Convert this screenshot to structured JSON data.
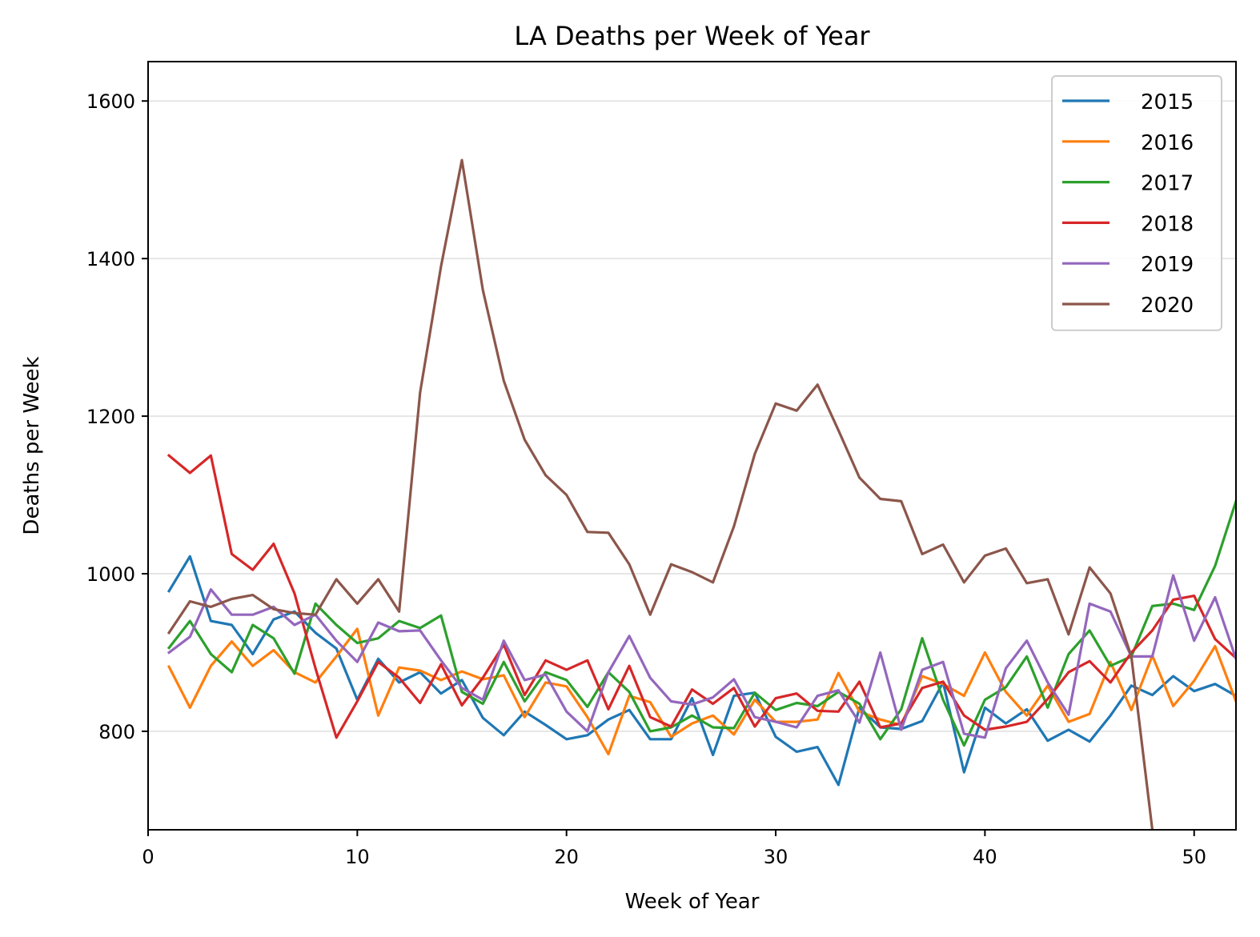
{
  "chart_data": {
    "type": "line",
    "title": "LA Deaths per Week of Year",
    "xlabel": "Week of Year",
    "ylabel": "Deaths per Week",
    "xlim": [
      0,
      52
    ],
    "ylim": [
      675,
      1650
    ],
    "xticks": [
      0,
      10,
      20,
      30,
      40,
      50
    ],
    "yticks": [
      800,
      1000,
      1200,
      1400,
      1600
    ],
    "grid": "horizontal",
    "legend_position": "top-right",
    "series": [
      {
        "name": "2015",
        "color": "#1f77b4",
        "x": [
          1,
          2,
          3,
          4,
          5,
          6,
          7,
          8,
          9,
          10,
          11,
          12,
          13,
          14,
          15,
          16,
          17,
          18,
          19,
          20,
          21,
          22,
          23,
          24,
          25,
          26,
          27,
          28,
          29,
          30,
          31,
          32,
          33,
          34,
          35,
          36,
          37,
          38,
          39,
          40,
          41,
          42,
          43,
          44,
          45,
          46,
          47,
          48,
          49,
          50,
          51,
          52
        ],
        "values": [
          978,
          1022,
          940,
          935,
          898,
          942,
          952,
          925,
          905,
          840,
          892,
          862,
          875,
          848,
          865,
          817,
          795,
          825,
          808,
          790,
          795,
          815,
          827,
          790,
          790,
          842,
          770,
          845,
          849,
          793,
          774,
          780,
          732,
          830,
          805,
          803,
          813,
          862,
          748,
          830,
          810,
          828,
          788,
          802,
          787,
          820,
          858,
          846,
          870,
          851,
          860,
          845
        ]
      },
      {
        "name": "2016",
        "color": "#ff7f0e",
        "x": [
          1,
          2,
          3,
          4,
          5,
          6,
          7,
          8,
          9,
          10,
          11,
          12,
          13,
          14,
          15,
          16,
          17,
          18,
          19,
          20,
          21,
          22,
          23,
          24,
          25,
          26,
          27,
          28,
          29,
          30,
          31,
          32,
          33,
          34,
          35,
          36,
          37,
          38,
          39,
          40,
          41,
          42,
          43,
          44,
          45,
          46,
          47,
          48,
          49,
          50,
          51,
          52
        ],
        "values": [
          882,
          830,
          883,
          914,
          883,
          903,
          875,
          862,
          895,
          930,
          820,
          881,
          877,
          865,
          876,
          866,
          871,
          818,
          862,
          857,
          818,
          771,
          845,
          837,
          793,
          810,
          820,
          796,
          840,
          812,
          812,
          815,
          874,
          825,
          815,
          808,
          870,
          860,
          845,
          900,
          850,
          820,
          858,
          812,
          822,
          888,
          827,
          896,
          832,
          864,
          908,
          838
        ]
      },
      {
        "name": "2017",
        "color": "#2ca02c",
        "x": [
          1,
          2,
          3,
          4,
          5,
          6,
          7,
          8,
          9,
          10,
          11,
          12,
          13,
          14,
          15,
          16,
          17,
          18,
          19,
          20,
          21,
          22,
          23,
          24,
          25,
          26,
          27,
          28,
          29,
          30,
          31,
          32,
          33,
          34,
          35,
          36,
          37,
          38,
          39,
          40,
          41,
          42,
          43,
          44,
          45,
          46,
          47,
          48,
          49,
          50,
          51,
          52
        ],
        "values": [
          906,
          940,
          898,
          875,
          935,
          918,
          873,
          962,
          935,
          912,
          918,
          940,
          931,
          947,
          850,
          835,
          888,
          838,
          875,
          865,
          831,
          875,
          850,
          800,
          805,
          820,
          805,
          804,
          849,
          827,
          836,
          832,
          850,
          835,
          790,
          828,
          918,
          840,
          782,
          840,
          856,
          895,
          830,
          898,
          928,
          883,
          895,
          959,
          962,
          954,
          1010,
          1092
        ]
      },
      {
        "name": "2018",
        "color": "#d62728",
        "x": [
          1,
          2,
          3,
          4,
          5,
          6,
          7,
          8,
          9,
          10,
          11,
          12,
          13,
          14,
          15,
          16,
          17,
          18,
          19,
          20,
          21,
          22,
          23,
          24,
          25,
          26,
          27,
          28,
          29,
          30,
          31,
          32,
          33,
          34,
          35,
          36,
          37,
          38,
          39,
          40,
          41,
          42,
          43,
          44,
          45,
          46,
          47,
          48,
          49,
          50,
          51,
          52
        ],
        "values": [
          1150,
          1128,
          1150,
          1025,
          1005,
          1038,
          975,
          880,
          792,
          838,
          888,
          868,
          836,
          885,
          833,
          868,
          910,
          846,
          890,
          878,
          890,
          828,
          883,
          818,
          806,
          853,
          835,
          855,
          806,
          842,
          848,
          826,
          825,
          863,
          805,
          810,
          855,
          863,
          820,
          802,
          806,
          812,
          841,
          875,
          889,
          862,
          900,
          928,
          967,
          972,
          917,
          893
        ]
      },
      {
        "name": "2019",
        "color": "#9467bd",
        "x": [
          1,
          2,
          3,
          4,
          5,
          6,
          7,
          8,
          9,
          10,
          11,
          12,
          13,
          14,
          15,
          16,
          17,
          18,
          19,
          20,
          21,
          22,
          23,
          24,
          25,
          26,
          27,
          28,
          29,
          30,
          31,
          32,
          33,
          34,
          35,
          36,
          37,
          38,
          39,
          40,
          41,
          42,
          43,
          44,
          45,
          46,
          47,
          48,
          49,
          50,
          51,
          52
        ],
        "values": [
          900,
          920,
          980,
          948,
          948,
          958,
          935,
          948,
          915,
          888,
          938,
          927,
          928,
          890,
          855,
          840,
          915,
          865,
          872,
          825,
          800,
          875,
          921,
          868,
          838,
          834,
          843,
          866,
          818,
          812,
          805,
          845,
          852,
          811,
          900,
          802,
          878,
          888,
          797,
          792,
          880,
          915,
          862,
          821,
          962,
          952,
          895,
          895,
          998,
          915,
          970,
          892
        ]
      },
      {
        "name": "2020",
        "color": "#8c564b",
        "x": [
          1,
          2,
          3,
          4,
          5,
          6,
          7,
          8,
          9,
          10,
          11,
          12,
          13,
          14,
          15,
          16,
          17,
          18,
          19,
          20,
          21,
          22,
          23,
          24,
          25,
          26,
          27,
          28,
          29,
          30,
          31,
          32,
          33,
          34,
          35,
          36,
          37,
          38,
          39,
          40,
          41,
          42,
          43,
          44,
          45,
          46,
          47,
          48
        ],
        "values": [
          925,
          965,
          958,
          968,
          973,
          955,
          950,
          948,
          993,
          962,
          993,
          952,
          1230,
          1390,
          1525,
          1360,
          1245,
          1170,
          1125,
          1100,
          1053,
          1052,
          1012,
          948,
          1012,
          1002,
          989,
          1060,
          1152,
          1216,
          1207,
          1240,
          1182,
          1122,
          1095,
          1092,
          1025,
          1037,
          989,
          1023,
          1032,
          988,
          993,
          923,
          1008,
          975,
          895,
          675
        ]
      }
    ]
  }
}
